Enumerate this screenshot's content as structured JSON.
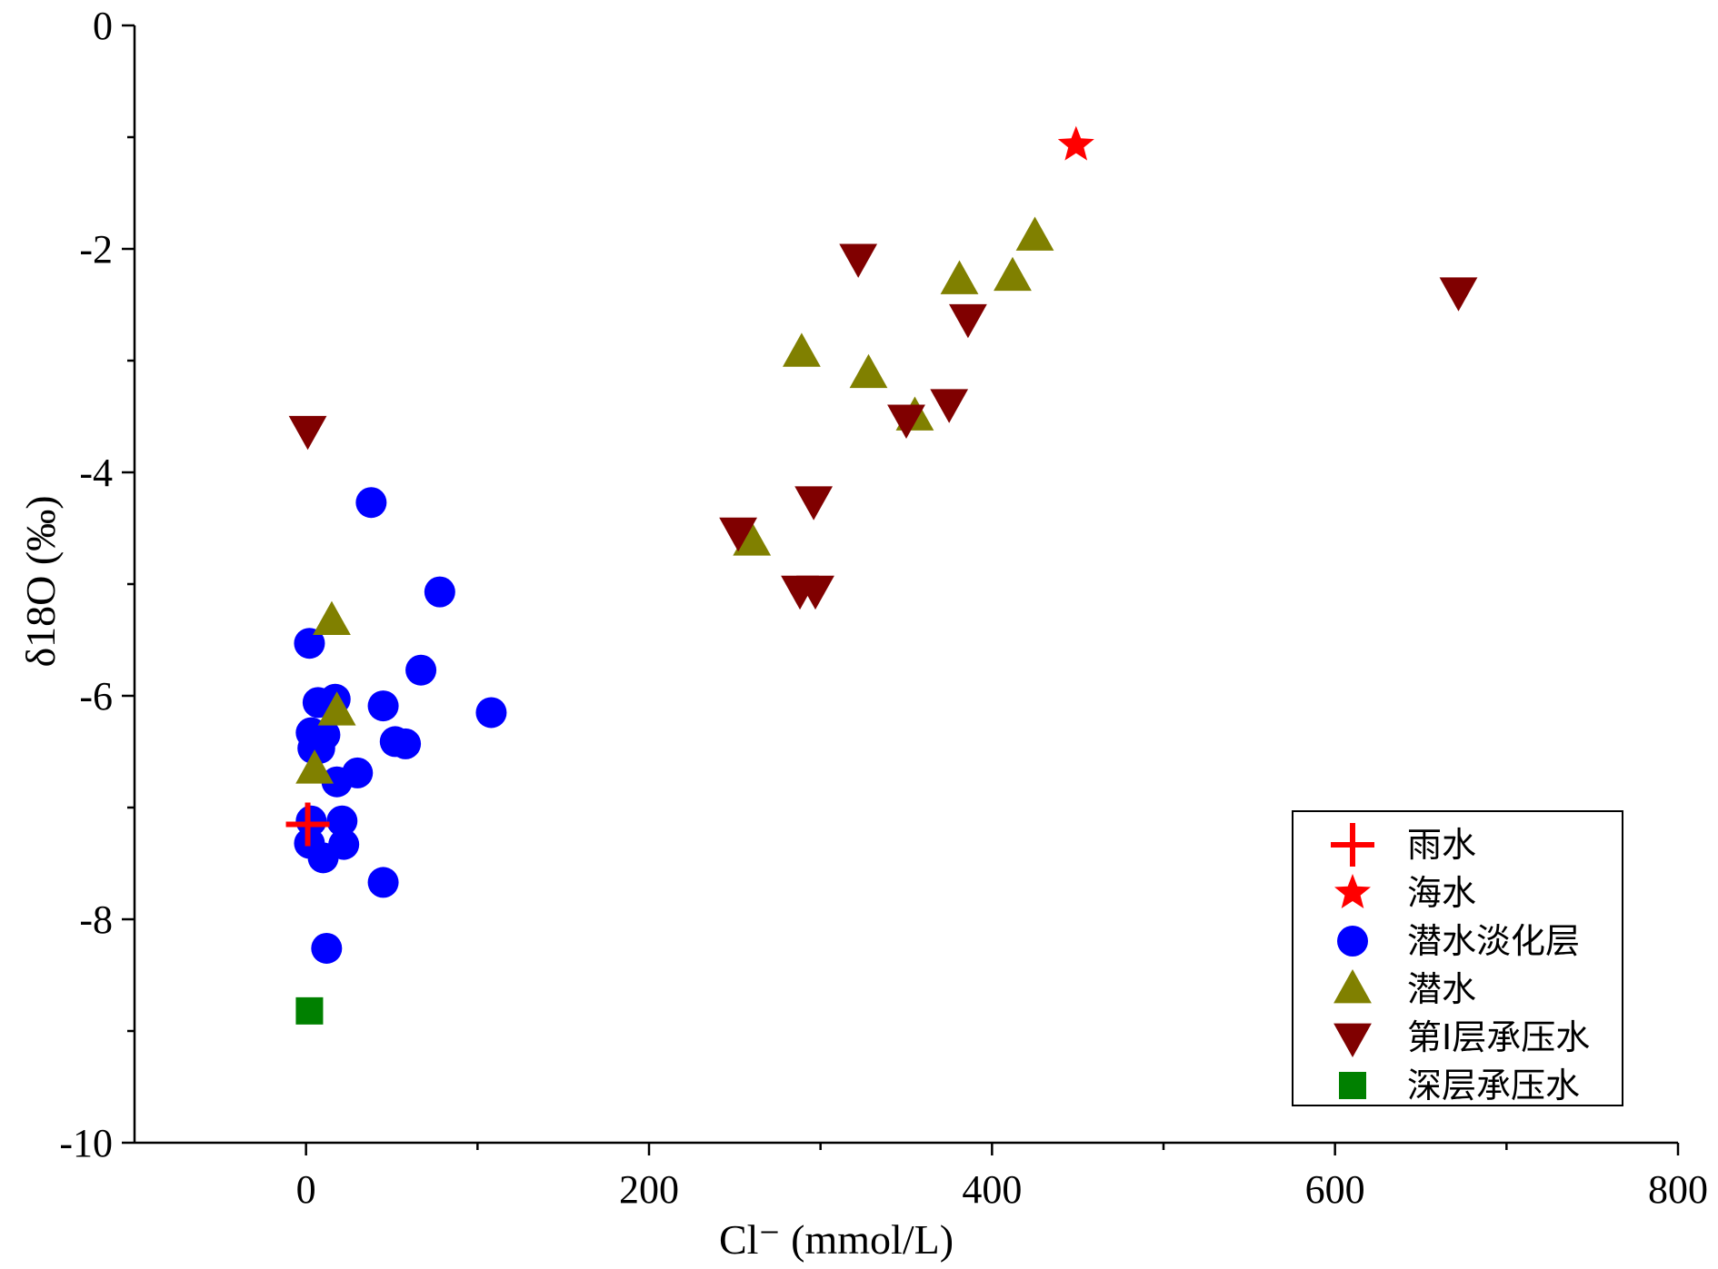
{
  "chart_data": {
    "type": "scatter",
    "xlabel": "Cl⁻ (mmol/L)",
    "ylabel": "δ18O (‰)",
    "xlim": [
      -100,
      800
    ],
    "ylim": [
      -10,
      0
    ],
    "x_ticks": [
      0,
      200,
      400,
      600,
      800
    ],
    "y_ticks": [
      0,
      -2,
      -4,
      -6,
      -8,
      -10
    ],
    "x_tick_labels": [
      "0",
      "200",
      "400",
      "600",
      "800"
    ],
    "y_tick_labels": [
      "0",
      "-2",
      "-4",
      "-6",
      "-8",
      "-10"
    ],
    "grid": false,
    "legend_position": "bottom-right",
    "series": [
      {
        "name": "雨水",
        "marker": "plus",
        "color": "#ff0000",
        "points": [
          [
            1,
            -7.15
          ]
        ]
      },
      {
        "name": "海水",
        "marker": "star",
        "color": "#ff0000",
        "points": [
          [
            449,
            -1.07
          ]
        ]
      },
      {
        "name": "潜水淡化层",
        "marker": "circle",
        "color": "#0000ff",
        "points": [
          [
            38,
            -4.27
          ],
          [
            78,
            -5.07
          ],
          [
            2,
            -5.53
          ],
          [
            67,
            -5.77
          ],
          [
            108,
            -6.15
          ],
          [
            45,
            -6.09
          ],
          [
            7,
            -6.06
          ],
          [
            17,
            -6.03
          ],
          [
            3,
            -6.33
          ],
          [
            11,
            -6.35
          ],
          [
            4,
            -6.47
          ],
          [
            8,
            -6.47
          ],
          [
            52,
            -6.41
          ],
          [
            58,
            -6.43
          ],
          [
            30,
            -6.69
          ],
          [
            18,
            -6.77
          ],
          [
            3,
            -7.12
          ],
          [
            21,
            -7.12
          ],
          [
            2,
            -7.32
          ],
          [
            22,
            -7.33
          ],
          [
            10,
            -7.45
          ],
          [
            45,
            -7.67
          ],
          [
            12,
            -8.26
          ]
        ]
      },
      {
        "name": "潜水",
        "marker": "triangle-up",
        "color": "#808000",
        "points": [
          [
            425,
            -1.89
          ],
          [
            381,
            -2.28
          ],
          [
            412,
            -2.25
          ],
          [
            289,
            -2.93
          ],
          [
            328,
            -3.12
          ],
          [
            355,
            -3.5
          ],
          [
            260,
            -4.62
          ],
          [
            15,
            -5.33
          ],
          [
            18,
            -6.14
          ],
          [
            5,
            -6.66
          ]
        ]
      },
      {
        "name": "第I层承压水",
        "marker": "triangle-down",
        "color": "#800000",
        "points": [
          [
            322,
            -2.08
          ],
          [
            672,
            -2.38
          ],
          [
            386,
            -2.62
          ],
          [
            375,
            -3.38
          ],
          [
            350,
            -3.52
          ],
          [
            1,
            -3.62
          ],
          [
            296,
            -4.25
          ],
          [
            252,
            -4.53
          ],
          [
            288,
            -5.05
          ],
          [
            297,
            -5.05
          ]
        ]
      },
      {
        "name": "深层承压水",
        "marker": "square",
        "color": "#008000",
        "points": [
          [
            2,
            -8.82
          ]
        ]
      }
    ]
  }
}
